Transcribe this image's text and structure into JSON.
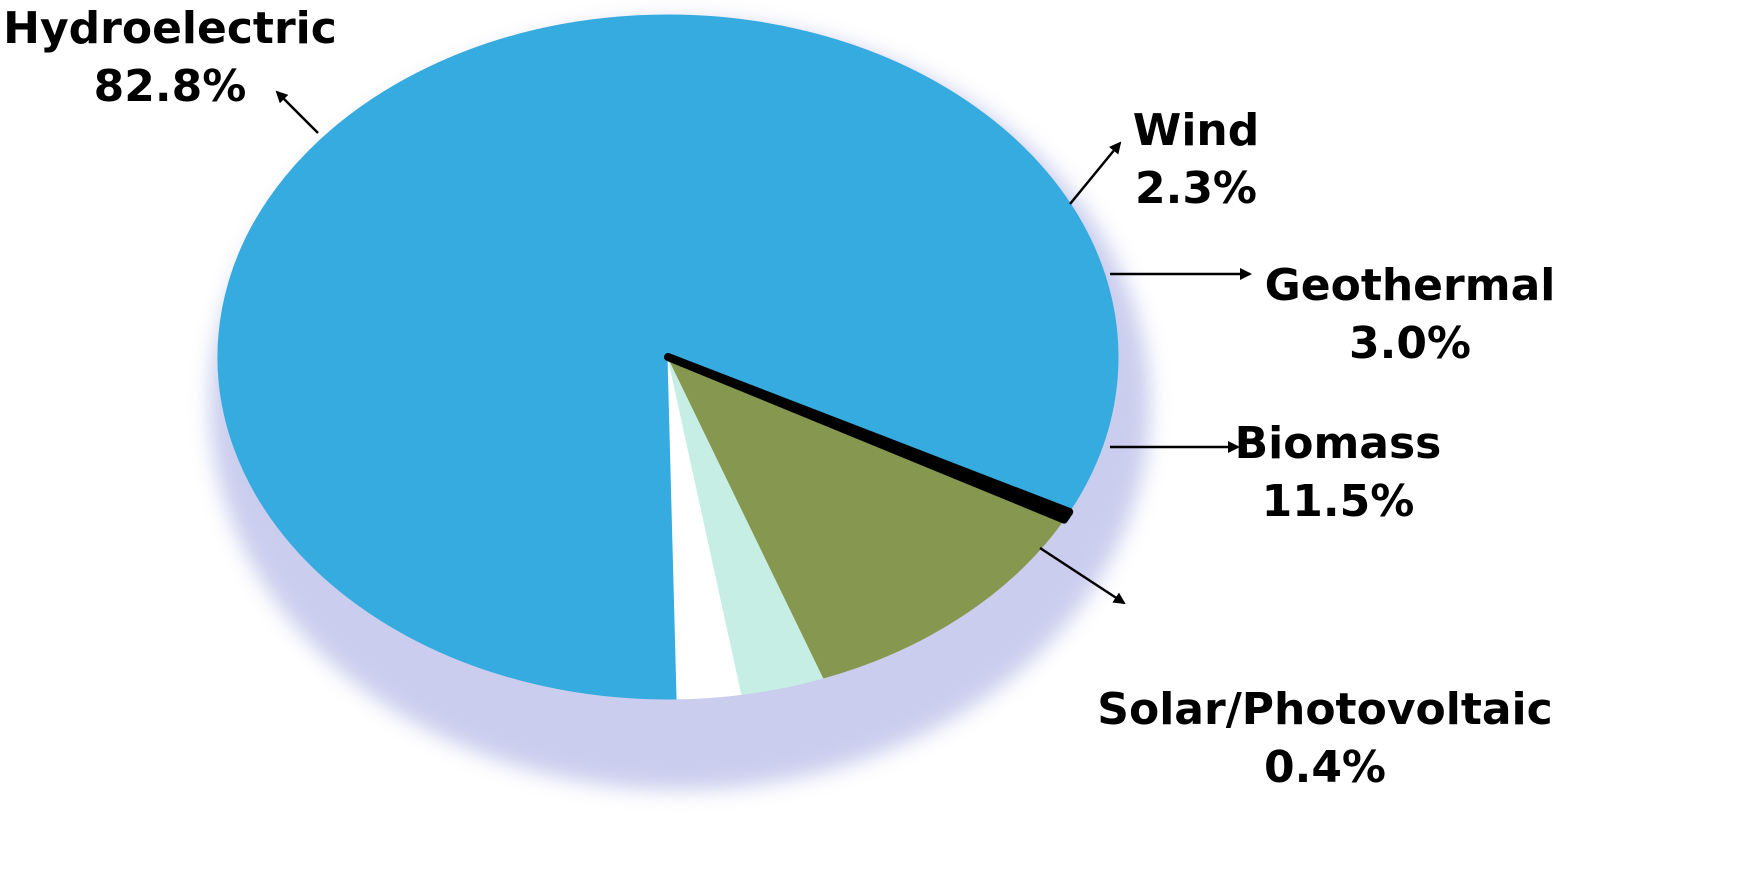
{
  "chart_data": {
    "type": "pie",
    "title": "",
    "unit": "%",
    "legend": "none",
    "slices": [
      {
        "label": "Hydroelectric",
        "value": 82.8,
        "value_label": "82.8%",
        "color": "#36abdf"
      },
      {
        "label": "Wind",
        "value": 2.3,
        "value_label": "2.3%",
        "color": "#ffffff"
      },
      {
        "label": "Geothermal",
        "value": 3.0,
        "value_label": "3.0%",
        "color": "#c6eee4"
      },
      {
        "label": "Biomass",
        "value": 11.5,
        "value_label": "11.5%",
        "color": "#86984f"
      },
      {
        "label": "Solar/Photovoltaic",
        "value": 0.4,
        "value_label": "0.4%",
        "color": "#000000"
      }
    ]
  }
}
